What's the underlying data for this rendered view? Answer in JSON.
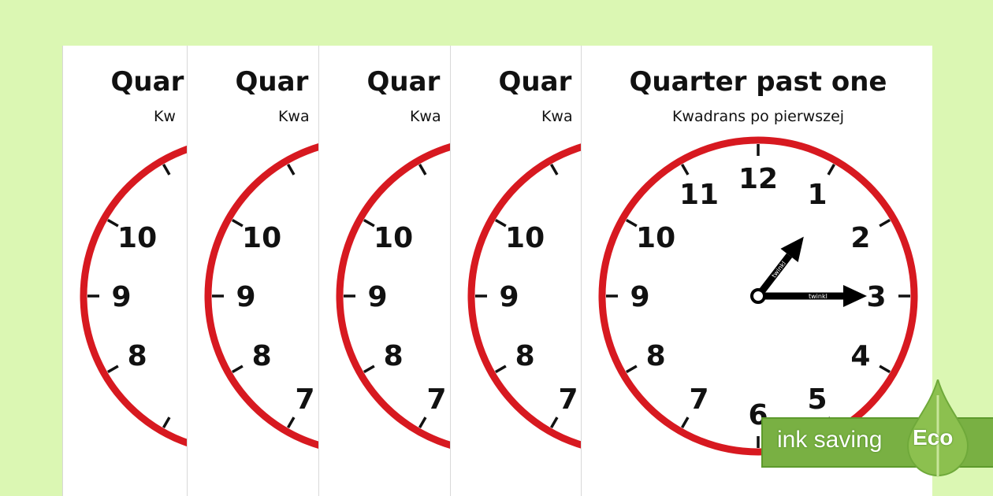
{
  "sheet": {
    "title": "Quarter past one",
    "subtitle": "Kwadrans po pierwszej",
    "clock_numbers": [
      "12",
      "1",
      "2",
      "3",
      "4",
      "5",
      "6",
      "7",
      "8",
      "9",
      "10",
      "11"
    ],
    "time_shown": "1:15",
    "hand_brand": "twinkl",
    "page_count": 5
  },
  "badge": {
    "text": "ink saving",
    "label": "Eco"
  },
  "colors": {
    "background": "#dbf7b3",
    "clock_rim": "#d71920",
    "badge": "#79b043"
  }
}
